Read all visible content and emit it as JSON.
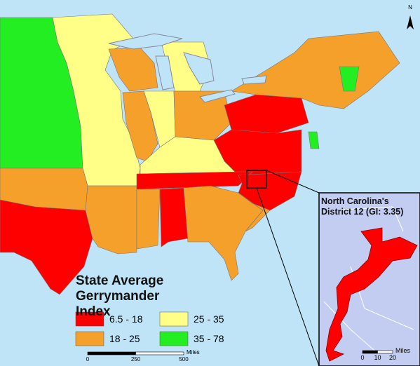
{
  "legend": {
    "title": "State Average Gerrymander Index",
    "items": [
      {
        "label": "6.5 - 18",
        "color": "#ff0000"
      },
      {
        "label": "18 - 25",
        "color": "#f5a02a"
      },
      {
        "label": "25 - 35",
        "color": "#ffff88"
      },
      {
        "label": "35 - 78",
        "color": "#22ee22"
      }
    ]
  },
  "inset": {
    "title": "North Carolina's District 12 (GI: 3.35)"
  },
  "scale_bar": {
    "ticks": [
      0,
      250,
      500
    ],
    "unit": "Miles"
  },
  "inset_scale_bar": {
    "ticks": [
      0,
      10,
      20
    ],
    "unit": "Miles"
  },
  "north_arrow": "N"
}
